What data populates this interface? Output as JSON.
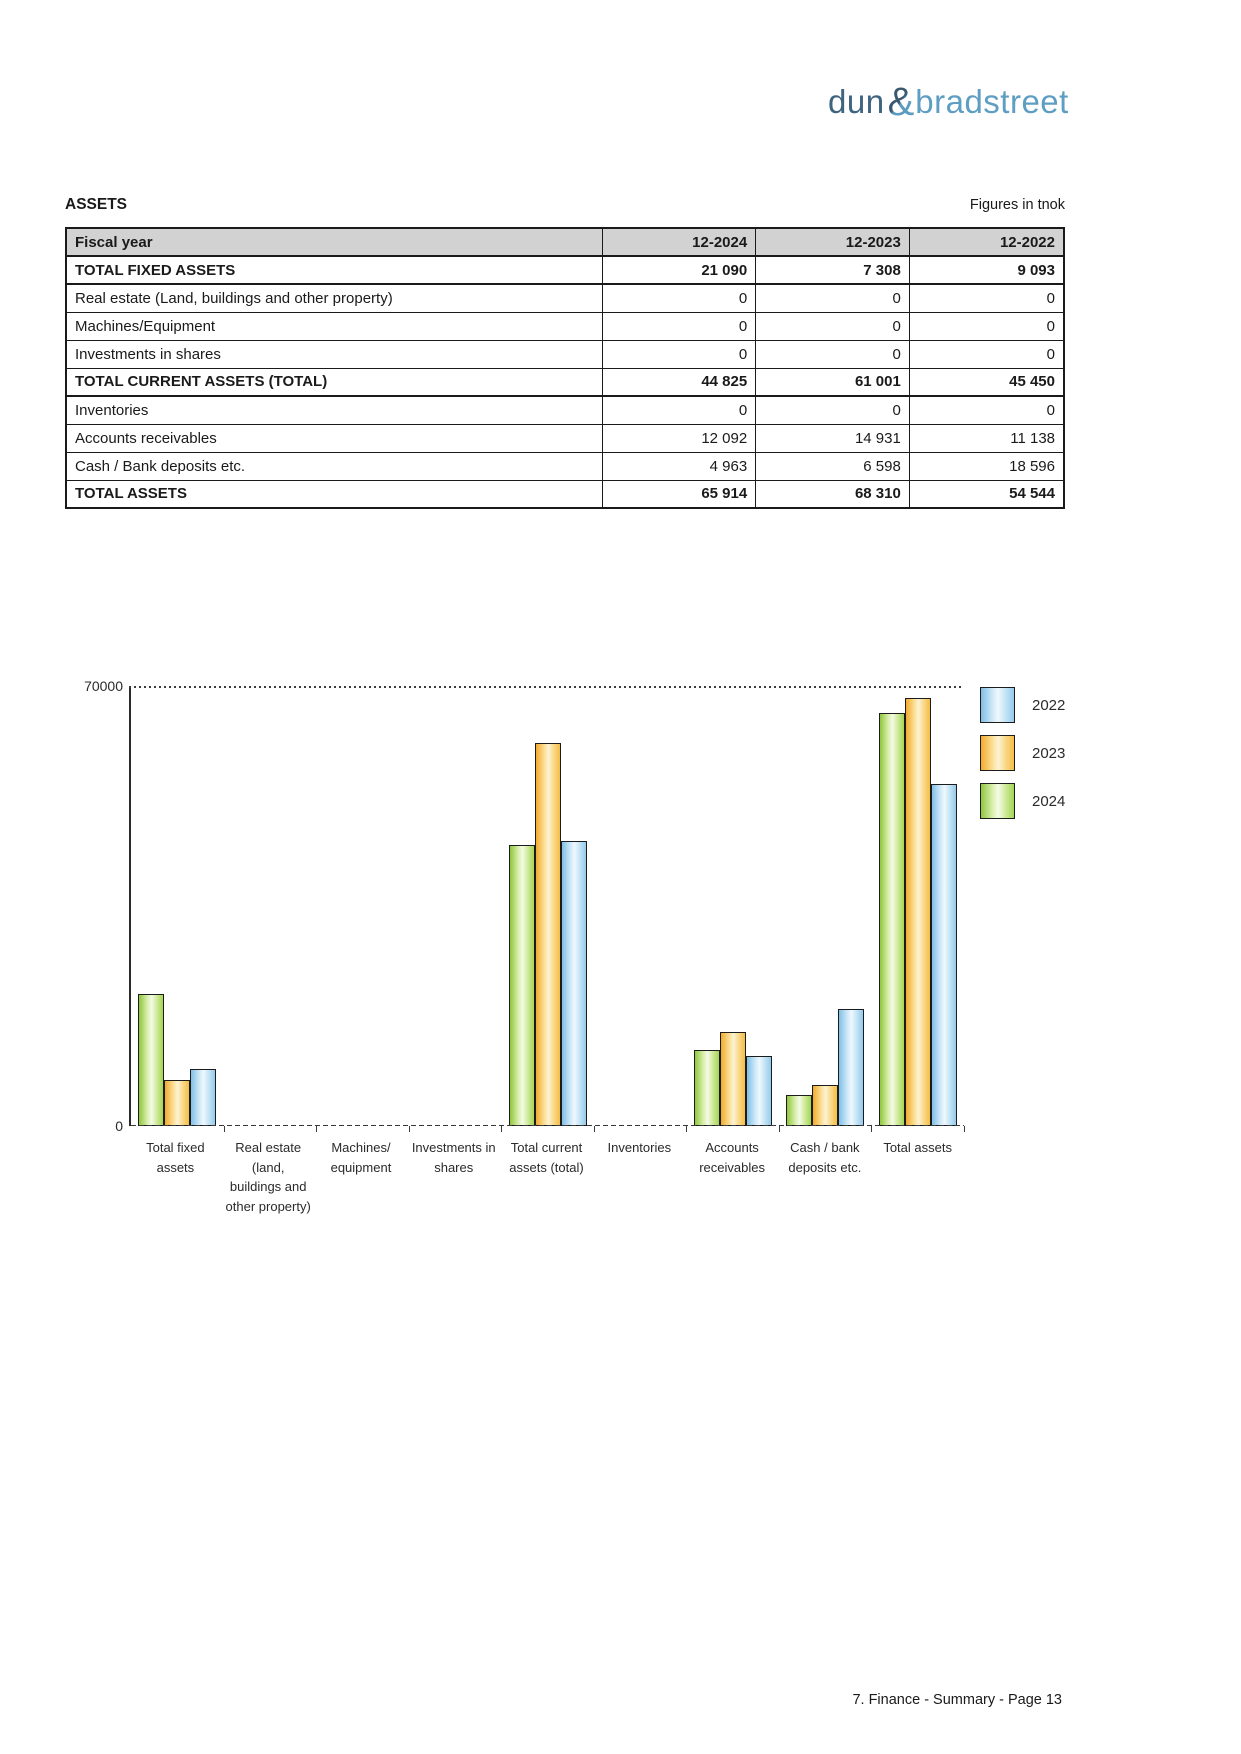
{
  "logo": {
    "part1": "dun",
    "ampersand": "&",
    "part2": "bradstreet"
  },
  "header": {
    "title": "ASSETS",
    "unit_note": "Figures in tnok"
  },
  "table": {
    "columns": [
      "Fiscal year",
      "12-2024",
      "12-2023",
      "12-2022"
    ],
    "rows": [
      {
        "label": "TOTAL FIXED ASSETS",
        "values": [
          "21 090",
          "7 308",
          "9 093"
        ],
        "bold": true
      },
      {
        "label": "Real estate (Land, buildings and other property)",
        "values": [
          "0",
          "0",
          "0"
        ],
        "bold": false
      },
      {
        "label": "Machines/Equipment",
        "values": [
          "0",
          "0",
          "0"
        ],
        "bold": false
      },
      {
        "label": "Investments in shares",
        "values": [
          "0",
          "0",
          "0"
        ],
        "bold": false
      },
      {
        "label": "TOTAL CURRENT ASSETS (TOTAL)",
        "values": [
          "44 825",
          "61 001",
          "45 450"
        ],
        "bold": true
      },
      {
        "label": "Inventories",
        "values": [
          "0",
          "0",
          "0"
        ],
        "bold": false
      },
      {
        "label": "Accounts receivables",
        "values": [
          "12 092",
          "14 931",
          "11 138"
        ],
        "bold": false
      },
      {
        "label": "Cash / Bank deposits etc.",
        "values": [
          "4 963",
          "6 598",
          "18 596"
        ],
        "bold": false
      },
      {
        "label": "TOTAL ASSETS",
        "values": [
          "65 914",
          "68 310",
          "54 544"
        ],
        "bold": true
      }
    ]
  },
  "chart_data": {
    "type": "bar",
    "unit": "tnok",
    "categories": [
      "Total fixed assets",
      "Real estate (land, buildings and other property)",
      "Machines/ equipment",
      "Investments in shares",
      "Total current assets (total)",
      "Inventories",
      "Accounts receivables",
      "Cash / bank deposits etc.",
      "Total assets"
    ],
    "category_lines": [
      [
        "Total fixed",
        "assets"
      ],
      [
        "Real estate",
        "(land,",
        "buildings and",
        "other property)"
      ],
      [
        "Machines/",
        "equipment"
      ],
      [
        "Investments in",
        "shares"
      ],
      [
        "Total current",
        "assets (total)"
      ],
      [
        "Inventories"
      ],
      [
        "Accounts",
        "receivables"
      ],
      [
        "Cash / bank",
        "deposits etc."
      ],
      [
        "Total assets"
      ]
    ],
    "series": [
      {
        "name": "2024",
        "color": "#8dc63f",
        "values": [
          21090,
          0,
          0,
          0,
          44825,
          0,
          12092,
          4963,
          65914
        ]
      },
      {
        "name": "2023",
        "color": "#f5b335",
        "values": [
          7308,
          0,
          0,
          0,
          61001,
          0,
          14931,
          6598,
          68310
        ]
      },
      {
        "name": "2022",
        "color": "#7dbde5",
        "values": [
          9093,
          0,
          0,
          0,
          45450,
          0,
          11138,
          18596,
          54544
        ]
      }
    ],
    "legend": [
      "2022",
      "2023",
      "2024"
    ],
    "legend_position": "right",
    "ylim": [
      0,
      70000
    ],
    "yticks": [
      "70000",
      "0"
    ],
    "grid": "top-dotted-line-only"
  },
  "footer": {
    "text": "7. Finance - Summary - Page 13"
  }
}
